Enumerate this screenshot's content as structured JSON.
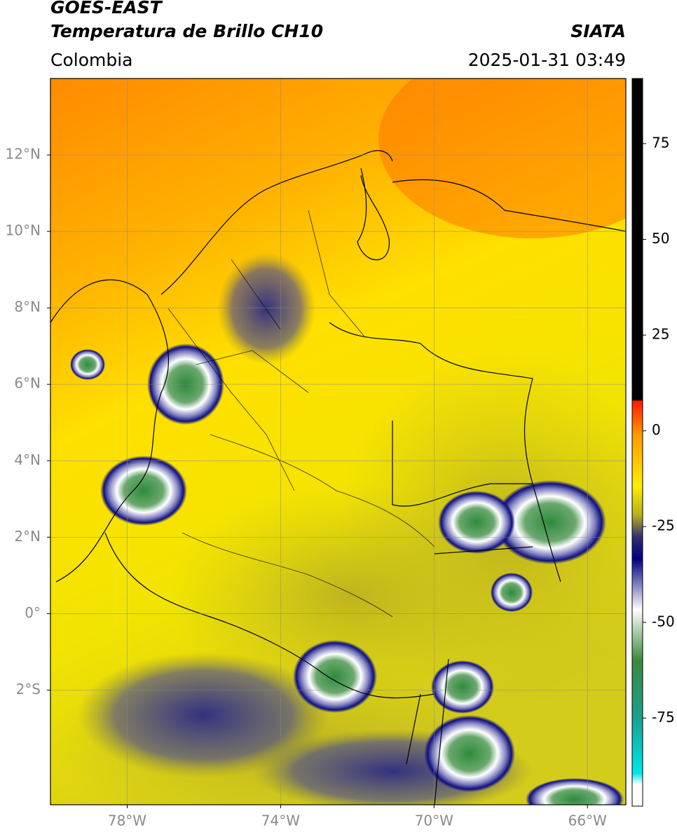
{
  "chart_data": {
    "type": "map",
    "title": "GOES-EAST",
    "subtitle": "Temperatura de Brillo CH10",
    "region": "Colombia",
    "source": "SIATA",
    "timestamp": "2025-01-31 03:49",
    "xlim": [
      -80,
      -65
    ],
    "ylim": [
      -5,
      14
    ],
    "xticks": [
      {
        "value": -78,
        "label": "78°W"
      },
      {
        "value": -74,
        "label": "74°W"
      },
      {
        "value": -70,
        "label": "70°W"
      },
      {
        "value": -66,
        "label": "66°W"
      }
    ],
    "yticks": [
      {
        "value": 12,
        "label": "12°N"
      },
      {
        "value": 10,
        "label": "10°N"
      },
      {
        "value": 8,
        "label": "8°N"
      },
      {
        "value": 6,
        "label": "6°N"
      },
      {
        "value": 4,
        "label": "4°N"
      },
      {
        "value": 2,
        "label": "2°N"
      },
      {
        "value": 0,
        "label": "0°"
      },
      {
        "value": -2,
        "label": "2°S"
      }
    ],
    "colorbar_lim": [
      -98,
      92
    ],
    "colorbar_ticks": [
      75,
      50,
      25,
      0,
      -25,
      -50,
      -75
    ],
    "grid": true
  }
}
